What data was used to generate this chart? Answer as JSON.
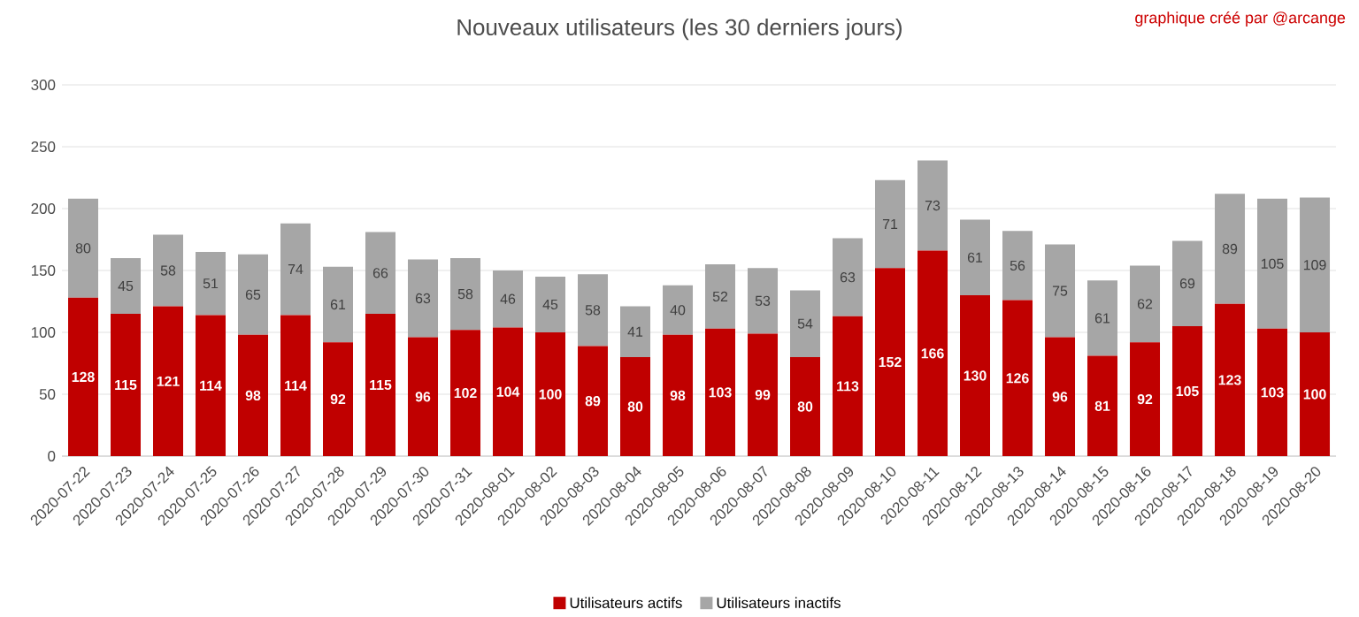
{
  "chart_data": {
    "type": "bar",
    "stacked": true,
    "title": "Nouveaux utilisateurs (les 30 derniers jours)",
    "annotations": [
      "graphique créé par @arcange"
    ],
    "categories": [
      "2020-07-22",
      "2020-07-23",
      "2020-07-24",
      "2020-07-25",
      "2020-07-26",
      "2020-07-27",
      "2020-07-28",
      "2020-07-29",
      "2020-07-30",
      "2020-07-31",
      "2020-08-01",
      "2020-08-02",
      "2020-08-03",
      "2020-08-04",
      "2020-08-05",
      "2020-08-06",
      "2020-08-07",
      "2020-08-08",
      "2020-08-09",
      "2020-08-10",
      "2020-08-11",
      "2020-08-12",
      "2020-08-13",
      "2020-08-14",
      "2020-08-15",
      "2020-08-16",
      "2020-08-17",
      "2020-08-18",
      "2020-08-19",
      "2020-08-20"
    ],
    "series": [
      {
        "name": "Utilisateurs actifs",
        "color": "#c00000",
        "values": [
          128,
          115,
          121,
          114,
          98,
          114,
          92,
          115,
          96,
          102,
          104,
          100,
          89,
          80,
          98,
          103,
          99,
          80,
          113,
          152,
          166,
          130,
          126,
          96,
          81,
          92,
          105,
          123,
          103,
          100
        ]
      },
      {
        "name": "Utilisateurs inactifs",
        "color": "#a6a6a6",
        "values": [
          80,
          45,
          58,
          51,
          65,
          74,
          61,
          66,
          63,
          58,
          46,
          45,
          58,
          41,
          40,
          52,
          53,
          54,
          63,
          71,
          73,
          61,
          56,
          75,
          61,
          62,
          69,
          89,
          105,
          109
        ]
      }
    ],
    "ylim": [
      0,
      300
    ],
    "yticks": [
      0,
      50,
      100,
      150,
      200,
      250,
      300
    ],
    "grid": "y",
    "legend": "bottom",
    "data_labels": true
  }
}
